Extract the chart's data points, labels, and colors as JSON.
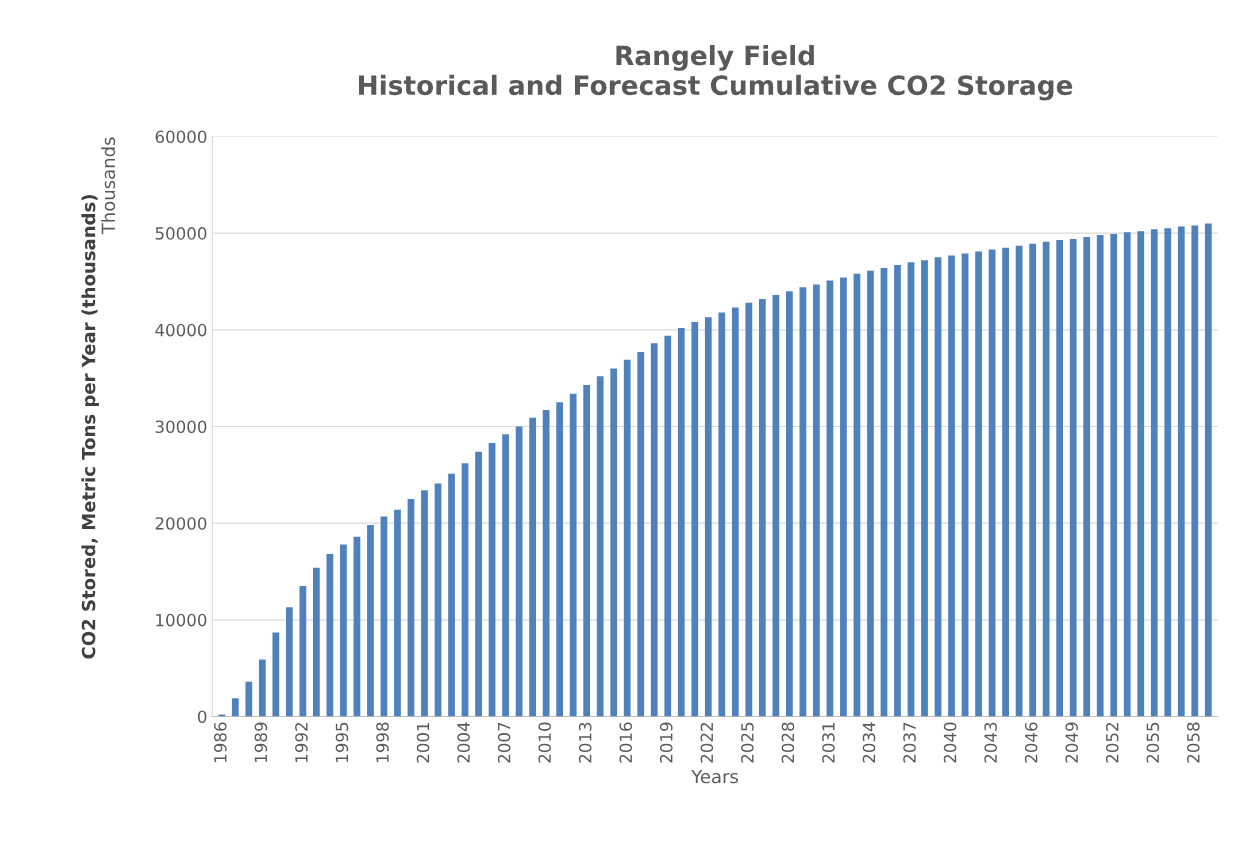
{
  "chart_data": {
    "type": "bar",
    "title": "Rangely Field\nHistorical and Forecast Cumulative CO2 Storage",
    "xlabel": "Years",
    "ylabel": "CO2 Stored, Metric Tons per Year (thousands)",
    "annotations": [
      "Thousands"
    ],
    "categories": [
      "1986",
      null,
      null,
      "1989",
      null,
      null,
      "1992",
      null,
      null,
      "1995",
      null,
      null,
      "1998",
      null,
      null,
      "2001",
      null,
      null,
      "2004",
      null,
      null,
      "2007",
      null,
      null,
      "2010",
      null,
      null,
      "2013",
      null,
      null,
      "2016",
      null,
      null,
      "2019",
      null,
      null,
      "2022",
      null,
      null,
      "2025",
      null,
      null,
      "2028",
      null,
      null,
      "2031",
      null,
      null,
      "2034",
      null,
      null,
      "2037",
      null,
      null,
      "2040",
      null,
      null,
      "2043",
      null,
      null,
      "2046",
      null,
      null,
      "2049",
      null,
      null,
      "2052",
      null,
      null,
      "2055",
      null,
      null,
      "2058",
      null
    ],
    "values": [
      200,
      1900,
      3600,
      5900,
      8700,
      11300,
      13500,
      15400,
      16800,
      17800,
      18600,
      19800,
      20700,
      21400,
      22500,
      23400,
      24100,
      25100,
      26200,
      27400,
      28300,
      29200,
      30000,
      30900,
      31700,
      32500,
      33400,
      34300,
      35200,
      36000,
      36900,
      37700,
      38600,
      39400,
      40200,
      40800,
      41300,
      41800,
      42300,
      42800,
      43200,
      43600,
      44000,
      44400,
      44700,
      45100,
      45400,
      45800,
      46100,
      46400,
      46700,
      47000,
      47200,
      47500,
      47700,
      47900,
      48100,
      48300,
      48500,
      48700,
      48900,
      49100,
      49300,
      49400,
      49600,
      49800,
      49900,
      50100,
      50200,
      50400,
      50500,
      50700,
      50800,
      51000
    ],
    "color": "#4f81bd",
    "ylim": [
      0,
      60000
    ],
    "yticks": [
      0,
      10000,
      20000,
      30000,
      40000,
      50000,
      60000
    ],
    "grid": "y",
    "legend": false
  }
}
